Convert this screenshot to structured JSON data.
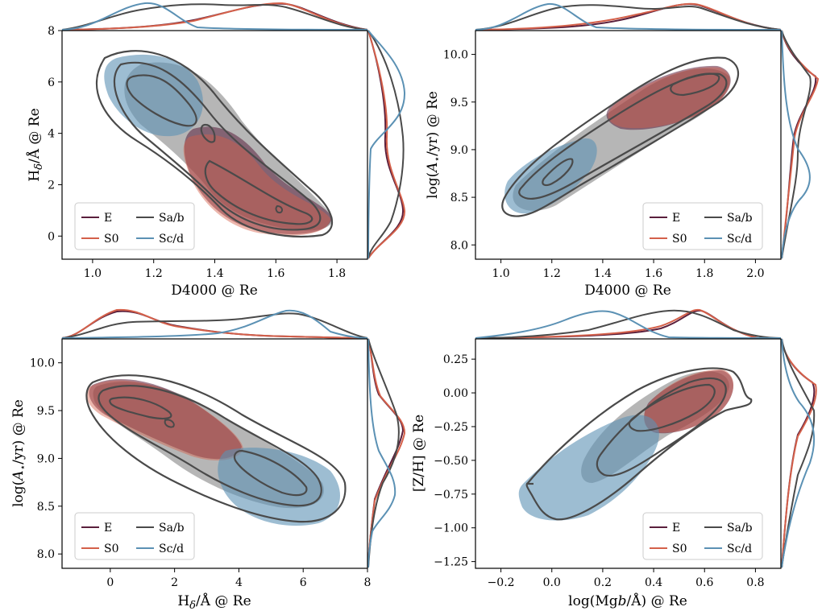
{
  "colors": {
    "E": "#5a1f3c",
    "S0": "#d4604a",
    "Sab": "#4a4a4a",
    "Scd": "#5b91b4",
    "frame": "#000000"
  },
  "legend": {
    "entries": [
      "E",
      "Sa/b",
      "S0",
      "Sc/d"
    ]
  },
  "chart_data": [
    {
      "type": "scatter",
      "name": "panel-top-left",
      "xlabel": "D4000 @ Re",
      "ylabel": "Hδ/Å @ Re",
      "xlim": [
        0.9,
        1.9
      ],
      "ylim": [
        -0.9,
        8.0
      ],
      "xticks": [
        1.0,
        1.2,
        1.4,
        1.6,
        1.8
      ],
      "xticklabels": [
        "1.0",
        "1.2",
        "1.4",
        "1.6",
        "1.8"
      ],
      "yticks": [
        0,
        2,
        4,
        6,
        8
      ],
      "yticklabels": [
        "0",
        "2",
        "4",
        "6",
        "8"
      ],
      "legend_position": "lower-left",
      "series": [
        {
          "name": "E",
          "center": [
            1.58,
            0.9
          ]
        },
        {
          "name": "S0",
          "center": [
            1.56,
            1.0
          ]
        },
        {
          "name": "Sa/b",
          "center": [
            1.42,
            2.8
          ]
        },
        {
          "name": "Sc/d",
          "center": [
            1.2,
            5.2
          ]
        }
      ]
    },
    {
      "type": "scatter",
      "name": "panel-top-right",
      "xlabel": "D4000 @ Re",
      "ylabel": "log(A⋆/yr) @ Re",
      "xlim": [
        0.9,
        2.1
      ],
      "ylim": [
        7.85,
        10.25
      ],
      "xticks": [
        1.0,
        1.2,
        1.4,
        1.6,
        1.8,
        2.0
      ],
      "xticklabels": [
        "1.0",
        "1.2",
        "1.4",
        "1.6",
        "1.8",
        "2.0"
      ],
      "yticks": [
        8.0,
        8.5,
        9.0,
        9.5,
        10.0
      ],
      "yticklabels": [
        "8.0",
        "8.5",
        "9.0",
        "9.5",
        "10.0"
      ],
      "legend_position": "lower-right",
      "series": [
        {
          "name": "E",
          "center": [
            1.75,
            9.7
          ]
        },
        {
          "name": "S0",
          "center": [
            1.72,
            9.65
          ]
        },
        {
          "name": "Sa/b",
          "center": [
            1.5,
            9.3
          ]
        },
        {
          "name": "Sc/d",
          "center": [
            1.2,
            8.75
          ]
        }
      ]
    },
    {
      "type": "scatter",
      "name": "panel-bottom-left",
      "xlabel": "Hδ/Å @ Re",
      "ylabel": "log(A⋆/yr) @ Re",
      "xlim": [
        -1.5,
        8.0
      ],
      "ylim": [
        7.85,
        10.25
      ],
      "xticks": [
        0,
        2,
        4,
        6,
        8
      ],
      "xticklabels": [
        "0",
        "2",
        "4",
        "6",
        "8"
      ],
      "yticks": [
        8.0,
        8.5,
        9.0,
        9.5,
        10.0
      ],
      "yticklabels": [
        "8.0",
        "8.5",
        "9.0",
        "9.5",
        "10.0"
      ],
      "legend_position": "lower-left",
      "series": [
        {
          "name": "E",
          "center": [
            0.8,
            9.55
          ]
        },
        {
          "name": "S0",
          "center": [
            1.0,
            9.5
          ]
        },
        {
          "name": "Sa/b",
          "center": [
            3.0,
            9.1
          ]
        },
        {
          "name": "Sc/d",
          "center": [
            5.2,
            8.75
          ]
        }
      ]
    },
    {
      "type": "scatter",
      "name": "panel-bottom-right",
      "xlabel": "log(Mgb/Å) @ Re",
      "ylabel": "[Z/H] @ Re",
      "xlim": [
        -0.3,
        0.9
      ],
      "ylim": [
        -1.3,
        0.4
      ],
      "xticks": [
        -0.2,
        0.0,
        0.2,
        0.4,
        0.6,
        0.8
      ],
      "xticklabels": [
        "−0.2",
        "0.0",
        "0.2",
        "0.4",
        "0.6",
        "0.8"
      ],
      "yticks": [
        -1.25,
        -1.0,
        -0.75,
        -0.5,
        -0.25,
        0.0,
        0.25
      ],
      "yticklabels": [
        "−1.25",
        "−1.00",
        "−0.75",
        "−0.50",
        "−0.25",
        "0.00",
        "0.25"
      ],
      "legend_position": "lower-right",
      "series": [
        {
          "name": "E",
          "center": [
            0.58,
            0.0
          ]
        },
        {
          "name": "S0",
          "center": [
            0.55,
            -0.05
          ]
        },
        {
          "name": "Sa/b",
          "center": [
            0.4,
            -0.2
          ]
        },
        {
          "name": "Sc/d",
          "center": [
            0.15,
            -0.55
          ]
        }
      ]
    }
  ]
}
